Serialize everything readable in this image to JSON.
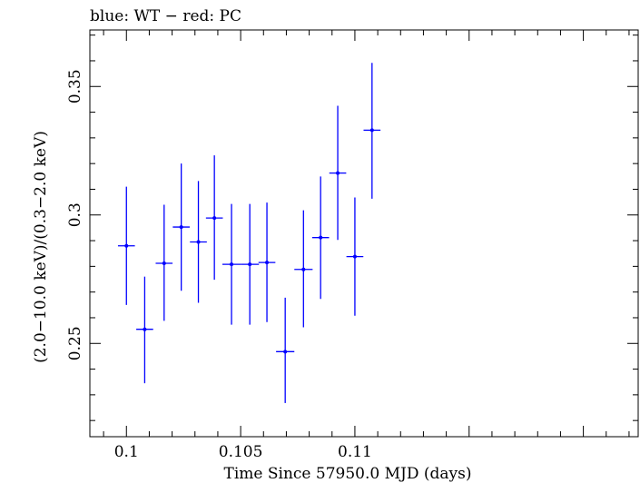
{
  "chart_data": {
    "type": "scatter",
    "title": "blue: WT − red: PC",
    "xlabel": "Time Since 57950.0 MJD (days)",
    "ylabel": "(2.0−10.0 keV)/(0.3−2.0 keV)",
    "xlim": [
      0.0984,
      0.1224
    ],
    "ylim": [
      0.2137,
      0.372
    ],
    "x_ticks": [
      0.1,
      0.105,
      0.11
    ],
    "x_tick_labels": [
      "0.1",
      "0.105",
      "0.11"
    ],
    "y_ticks": [
      0.25,
      0.3,
      0.35
    ],
    "y_tick_labels": [
      "0.25",
      "0.3",
      "0.35"
    ],
    "grid": false,
    "series": [
      {
        "color": "#0000ff",
        "points": [
          {
            "x": 0.1,
            "xerr": 0.00037,
            "y": 0.288,
            "ylo": 0.265,
            "yhi": 0.311
          },
          {
            "x": 0.1008,
            "xerr": 0.00037,
            "y": 0.2555,
            "ylo": 0.2345,
            "yhi": 0.276
          },
          {
            "x": 0.10165,
            "xerr": 0.00037,
            "y": 0.2812,
            "ylo": 0.2588,
            "yhi": 0.304
          },
          {
            "x": 0.1024,
            "xerr": 0.00037,
            "y": 0.2953,
            "ylo": 0.2705,
            "yhi": 0.32
          },
          {
            "x": 0.10315,
            "xerr": 0.00037,
            "y": 0.2895,
            "ylo": 0.2658,
            "yhi": 0.3132
          },
          {
            "x": 0.10385,
            "xerr": 0.00037,
            "y": 0.2988,
            "ylo": 0.2748,
            "yhi": 0.3232
          },
          {
            "x": 0.1046,
            "xerr": 0.0004,
            "y": 0.2808,
            "ylo": 0.2573,
            "yhi": 0.3043
          },
          {
            "x": 0.1054,
            "xerr": 0.0004,
            "y": 0.2808,
            "ylo": 0.2573,
            "yhi": 0.3043
          },
          {
            "x": 0.10615,
            "xerr": 0.00037,
            "y": 0.2815,
            "ylo": 0.2583,
            "yhi": 0.3048
          },
          {
            "x": 0.10695,
            "xerr": 0.0004,
            "y": 0.2468,
            "ylo": 0.2268,
            "yhi": 0.2678
          },
          {
            "x": 0.10775,
            "xerr": 0.0004,
            "y": 0.2788,
            "ylo": 0.2563,
            "yhi": 0.3018
          },
          {
            "x": 0.1085,
            "xerr": 0.00037,
            "y": 0.2912,
            "ylo": 0.2673,
            "yhi": 0.315
          },
          {
            "x": 0.10925,
            "xerr": 0.00037,
            "y": 0.3163,
            "ylo": 0.2903,
            "yhi": 0.3425
          },
          {
            "x": 0.11,
            "xerr": 0.00037,
            "y": 0.2838,
            "ylo": 0.2608,
            "yhi": 0.3068
          },
          {
            "x": 0.11075,
            "xerr": 0.00037,
            "y": 0.333,
            "ylo": 0.3063,
            "yhi": 0.3592
          }
        ]
      }
    ]
  }
}
